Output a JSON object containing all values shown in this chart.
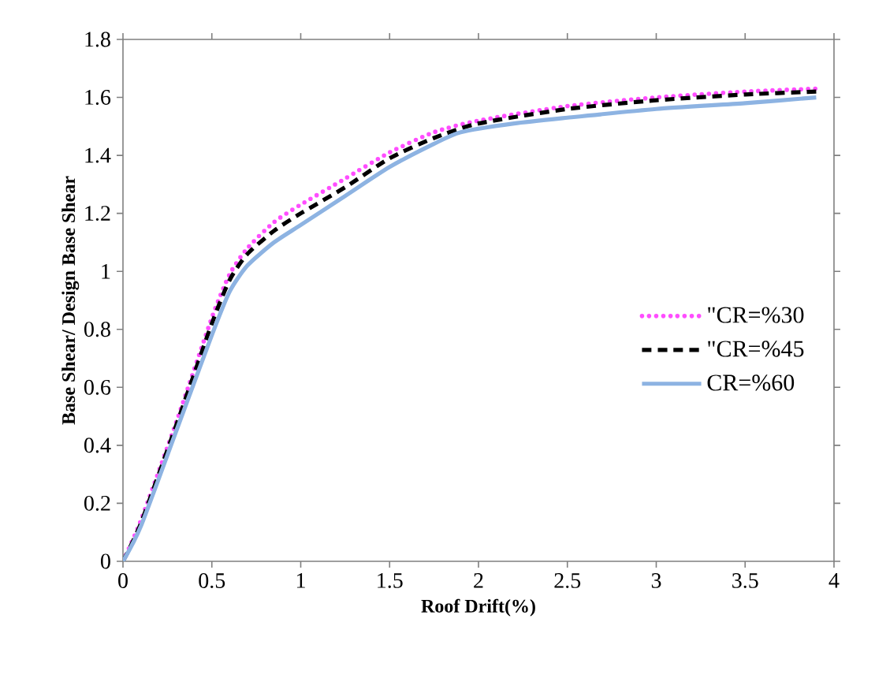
{
  "chart_data": {
    "type": "line",
    "xlabel": "Roof Drift(%)",
    "ylabel": "Base Shear/ Design Base Shear",
    "xlim": [
      0,
      4
    ],
    "ylim": [
      0,
      1.8
    ],
    "xticks": [
      0,
      0.5,
      1,
      1.5,
      2,
      2.5,
      3,
      3.5,
      4
    ],
    "yticks": [
      0,
      0.2,
      0.4,
      0.6,
      0.8,
      1,
      1.2,
      1.4,
      1.6,
      1.8
    ],
    "legend": "right",
    "grid": false,
    "marker": "none",
    "series": [
      {
        "name": "\"CR=%30",
        "color": "#ff4dff",
        "line_style": "dotted",
        "x": [
          0,
          0.1,
          0.3,
          0.5,
          0.6,
          0.7,
          0.85,
          1,
          1.25,
          1.5,
          1.75,
          2,
          2.5,
          3,
          3.5,
          3.9
        ],
        "values": [
          0,
          0.14,
          0.48,
          0.84,
          0.99,
          1.08,
          1.17,
          1.23,
          1.32,
          1.41,
          1.48,
          1.52,
          1.57,
          1.6,
          1.62,
          1.63
        ]
      },
      {
        "name": "\"CR=%45",
        "color": "#000000",
        "line_style": "dashed",
        "x": [
          0,
          0.1,
          0.3,
          0.5,
          0.6,
          0.7,
          0.85,
          1,
          1.25,
          1.5,
          1.75,
          2,
          2.5,
          3,
          3.5,
          3.9
        ],
        "values": [
          0,
          0.13,
          0.47,
          0.82,
          0.97,
          1.06,
          1.14,
          1.2,
          1.29,
          1.39,
          1.46,
          1.51,
          1.56,
          1.59,
          1.61,
          1.62
        ]
      },
      {
        "name": "CR=%60",
        "color": "#8db3e2",
        "line_style": "solid",
        "x": [
          0,
          0.1,
          0.3,
          0.5,
          0.6,
          0.7,
          0.85,
          1,
          1.25,
          1.5,
          1.75,
          1.9,
          2.2,
          2.5,
          3,
          3.5,
          3.9
        ],
        "values": [
          0,
          0.12,
          0.45,
          0.78,
          0.93,
          1.02,
          1.1,
          1.16,
          1.26,
          1.36,
          1.44,
          1.48,
          1.51,
          1.53,
          1.56,
          1.58,
          1.6
        ]
      }
    ]
  }
}
